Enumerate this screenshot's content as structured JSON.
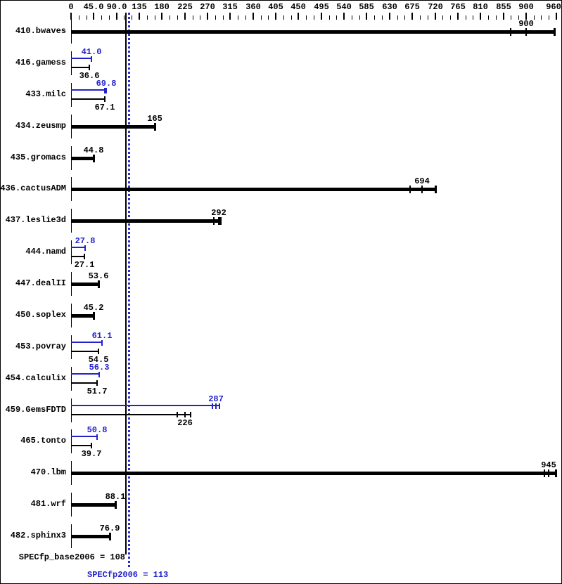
{
  "colors": {
    "background": "#ffffff",
    "border": "#000000",
    "base_bar": "#000000",
    "peak_accent": "#2222cc",
    "reference_dotted_blue": "#2b2bd6"
  },
  "chart_data": {
    "type": "bar",
    "orientation": "horizontal",
    "axis": {
      "position": "top",
      "min": 0,
      "max": 960,
      "minor_tick_step": 15,
      "major_tick_values": [
        0,
        45,
        90,
        135,
        180,
        225,
        270,
        315,
        360,
        405,
        450,
        495,
        540,
        585,
        630,
        675,
        720,
        765,
        810,
        855,
        900,
        960
      ],
      "major_tick_labels": [
        "0",
        "45.0",
        "90.0",
        "135",
        "180",
        "225",
        "270",
        "315",
        "360",
        "405",
        "450",
        "495",
        "540",
        "585",
        "630",
        "675",
        "720",
        "765",
        "810",
        "855",
        "900",
        "960"
      ]
    },
    "legend": {
      "peak_color_meaning": "peak result (blue)",
      "base_color_meaning": "base result (black)"
    },
    "rows": [
      {
        "label": "410.bwaves",
        "style": "single",
        "base": {
          "value": 900,
          "display": "900",
          "runs": [
            870,
            900,
            956
          ]
        },
        "peak": null
      },
      {
        "label": "416.gamess",
        "style": "double",
        "peak": {
          "value": 41.0,
          "display": "41.0",
          "runs": [
            41.0
          ]
        },
        "base": {
          "value": 36.6,
          "display": "36.6",
          "runs": [
            36.6
          ]
        }
      },
      {
        "label": "433.milc",
        "style": "double",
        "peak": {
          "value": 69.8,
          "display": "69.8",
          "runs": [
            66.5,
            69.8
          ]
        },
        "base": {
          "value": 67.1,
          "display": "67.1",
          "runs": [
            66.2,
            67.1
          ]
        }
      },
      {
        "label": "434.zeusmp",
        "style": "single",
        "base": {
          "value": 165,
          "display": "165",
          "runs": [
            165
          ]
        },
        "peak": null
      },
      {
        "label": "435.gromacs",
        "style": "single",
        "base": {
          "value": 44.8,
          "display": "44.8",
          "runs": [
            44.8
          ]
        },
        "peak": null
      },
      {
        "label": "436.cactusADM",
        "style": "single",
        "base": {
          "value": 694,
          "display": "694",
          "runs": [
            670,
            694,
            720
          ]
        },
        "peak": null
      },
      {
        "label": "437.leslie3d",
        "style": "single",
        "base": {
          "value": 292,
          "display": "292",
          "runs": [
            282,
            292,
            295
          ]
        },
        "peak": null
      },
      {
        "label": "444.namd",
        "style": "double",
        "peak": {
          "value": 27.8,
          "display": "27.8",
          "runs": [
            27.8
          ]
        },
        "base": {
          "value": 27.1,
          "display": "27.1",
          "runs": [
            27.1
          ]
        }
      },
      {
        "label": "447.dealII",
        "style": "single",
        "base": {
          "value": 53.6,
          "display": "53.6",
          "runs": [
            53.6
          ]
        },
        "peak": null
      },
      {
        "label": "450.soplex",
        "style": "single",
        "base": {
          "value": 45.2,
          "display": "45.2",
          "runs": [
            45.2
          ]
        },
        "peak": null
      },
      {
        "label": "453.povray",
        "style": "double",
        "peak": {
          "value": 61.1,
          "display": "61.1",
          "runs": [
            61.1
          ]
        },
        "base": {
          "value": 54.5,
          "display": "54.5",
          "runs": [
            54.5
          ]
        }
      },
      {
        "label": "454.calculix",
        "style": "double",
        "peak": {
          "value": 56.3,
          "display": "56.3",
          "runs": [
            56.3
          ]
        },
        "base": {
          "value": 51.7,
          "display": "51.7",
          "runs": [
            51.7
          ]
        }
      },
      {
        "label": "459.GemsFDTD",
        "style": "double",
        "peak": {
          "value": 287,
          "display": "287",
          "runs": [
            280,
            287,
            294
          ]
        },
        "base": {
          "value": 226,
          "display": "226",
          "runs": [
            210,
            226,
            237
          ]
        }
      },
      {
        "label": "465.tonto",
        "style": "double",
        "peak": {
          "value": 50.8,
          "display": "50.8",
          "runs": [
            50.8
          ]
        },
        "base": {
          "value": 39.7,
          "display": "39.7",
          "runs": [
            39.7
          ]
        }
      },
      {
        "label": "470.lbm",
        "style": "single",
        "base": {
          "value": 945,
          "display": "945",
          "runs": [
            937,
            945,
            958
          ]
        },
        "peak": null
      },
      {
        "label": "481.wrf",
        "style": "single",
        "base": {
          "value": 88.1,
          "display": "88.1",
          "runs": [
            88.1
          ]
        },
        "peak": null
      },
      {
        "label": "482.sphinx3",
        "style": "single",
        "base": {
          "value": 76.9,
          "display": "76.9",
          "runs": [
            76.9
          ]
        },
        "peak": null
      }
    ],
    "summary": {
      "base_text": "SPECfp_base2006 = 108",
      "base_value": 108,
      "peak_text": "SPECfp2006 = 113",
      "peak_value": 113
    }
  }
}
